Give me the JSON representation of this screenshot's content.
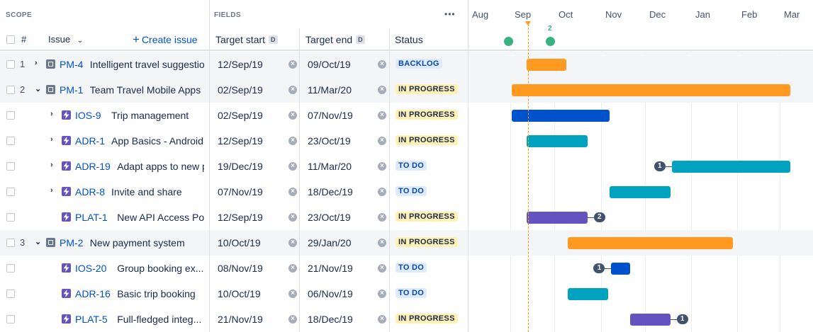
{
  "scope_label": "SCOPE",
  "fields_label": "FIELDS",
  "columns": {
    "rank": "#",
    "issue": "Issue",
    "create": "Create issue",
    "target_start": "Target start",
    "target_end": "Target end",
    "status": "Status",
    "date_badge": "D"
  },
  "more_label": "•••",
  "months": [
    "Aug",
    "Sep",
    "Oct",
    "Nov",
    "Dec",
    "Jan",
    "Feb",
    "Mar"
  ],
  "milestone_count": "2",
  "rows": [
    {
      "rank": "1",
      "caret": "right",
      "type": "epic",
      "key": "PM-4",
      "summary": "Intelligent travel suggestion",
      "start": "12/Sep/19",
      "end": "09/Oct/19",
      "status": "BACKLOG",
      "status_kind": "backlog",
      "bar_color": "#ff991f"
    },
    {
      "rank": "2",
      "caret": "down",
      "type": "epic",
      "key": "PM-1",
      "summary": "Team Travel Mobile Apps",
      "start": "02/Sep/19",
      "end": "11/Mar/20",
      "status": "IN PROGRESS",
      "status_kind": "inprogress",
      "bar_color": "#ff991f"
    },
    {
      "rank": "",
      "caret": "right",
      "type": "story",
      "key": "IOS-9",
      "summary": "Trip management",
      "start": "02/Sep/19",
      "end": "07/Nov/19",
      "status": "IN PROGRESS",
      "status_kind": "inprogress",
      "bar_color": "#0052cc"
    },
    {
      "rank": "",
      "caret": "right",
      "type": "story",
      "key": "ADR-1",
      "summary": "App Basics - Android",
      "start": "12/Sep/19",
      "end": "23/Oct/19",
      "status": "IN PROGRESS",
      "status_kind": "inprogress",
      "bar_color": "#00a3bf"
    },
    {
      "rank": "",
      "caret": "right",
      "type": "story",
      "key": "ADR-19",
      "summary": "Adapt apps to new pa",
      "start": "19/Dec/19",
      "end": "11/Mar/20",
      "status": "TO DO",
      "status_kind": "todo",
      "bar_color": "#00a3bf",
      "dep_before": "1"
    },
    {
      "rank": "",
      "caret": "right",
      "type": "story",
      "key": "ADR-8",
      "summary": "Invite and share",
      "start": "07/Nov/19",
      "end": "18/Dec/19",
      "status": "TO DO",
      "status_kind": "todo",
      "bar_color": "#00a3bf"
    },
    {
      "rank": "",
      "caret": "",
      "type": "story",
      "key": "PLAT-1",
      "summary": "New API Access Point",
      "start": "12/Sep/19",
      "end": "23/Oct/19",
      "status": "IN PROGRESS",
      "status_kind": "inprogress",
      "bar_color": "#6554c0",
      "dep_after": "2"
    },
    {
      "rank": "3",
      "caret": "down",
      "type": "epic",
      "key": "PM-2",
      "summary": "New payment system",
      "start": "10/Oct/19",
      "end": "29/Jan/20",
      "status": "IN PROGRESS",
      "status_kind": "inprogress",
      "bar_color": "#ff991f"
    },
    {
      "rank": "",
      "caret": "",
      "type": "story",
      "key": "IOS-20",
      "summary": "Group booking ex...",
      "start": "08/Nov/19",
      "end": "21/Nov/19",
      "status": "TO DO",
      "status_kind": "todo",
      "bar_color": "#0052cc",
      "dep_before": "1"
    },
    {
      "rank": "",
      "caret": "",
      "type": "story",
      "key": "ADR-16",
      "summary": "Basic trip booking",
      "start": "10/Oct/19",
      "end": "06/Nov/19",
      "status": "TO DO",
      "status_kind": "todo",
      "bar_color": "#00a3bf"
    },
    {
      "rank": "",
      "caret": "",
      "type": "story",
      "key": "PLAT-5",
      "summary": "Full-fledged integ...",
      "start": "21/Nov/19",
      "end": "18/Dec/19",
      "status": "IN PROGRESS",
      "status_kind": "inprogress",
      "bar_color": "#6554c0",
      "dep_after": "1"
    }
  ]
}
